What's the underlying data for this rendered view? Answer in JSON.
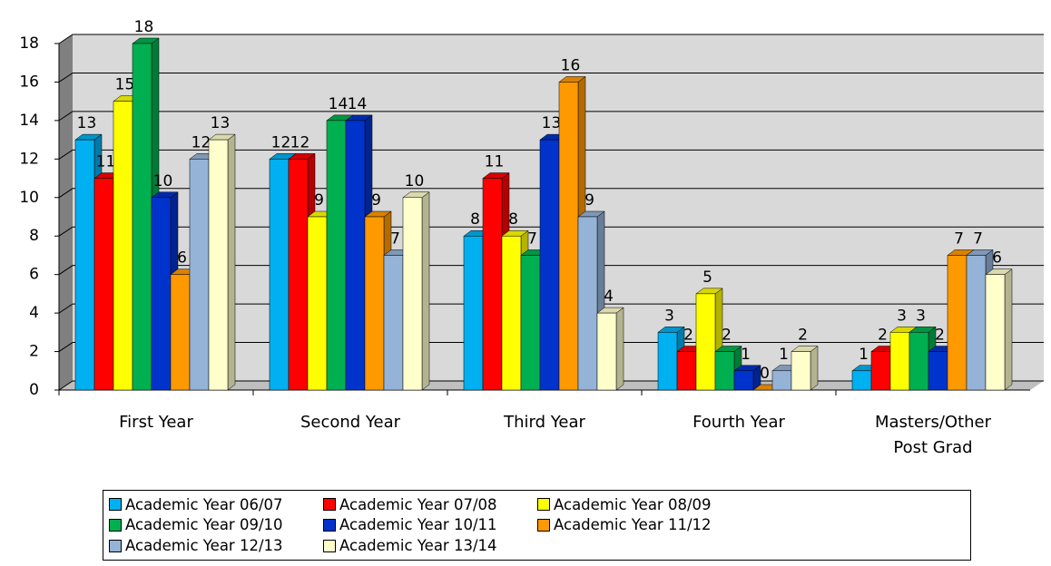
{
  "chart_data": {
    "type": "bar3d",
    "categories": [
      "First Year",
      "Second Year",
      "Third Year",
      "Fourth Year",
      "Masters/Other Post Grad"
    ],
    "series": [
      {
        "name": "Academic Year 06/07",
        "color": "#00b0f0",
        "values": [
          13,
          12,
          8,
          3,
          1
        ]
      },
      {
        "name": "Academic Year 07/08",
        "color": "#ff0000",
        "values": [
          11,
          12,
          11,
          2,
          2
        ]
      },
      {
        "name": "Academic Year 08/09",
        "color": "#ffff00",
        "values": [
          15,
          9,
          8,
          5,
          3
        ]
      },
      {
        "name": "Academic Year 09/10",
        "color": "#00b050",
        "values": [
          18,
          14,
          7,
          2,
          3
        ]
      },
      {
        "name": "Academic Year 10/11",
        "color": "#0033cc",
        "values": [
          10,
          14,
          13,
          1,
          2
        ]
      },
      {
        "name": "Academic Year 11/12",
        "color": "#ff9900",
        "values": [
          6,
          9,
          16,
          0,
          7
        ]
      },
      {
        "name": "Academic Year 12/13",
        "color": "#95b3d7",
        "values": [
          12,
          7,
          9,
          1,
          7
        ]
      },
      {
        "name": "Academic Year 13/14",
        "color": "#ffffcc",
        "values": [
          13,
          10,
          4,
          2,
          6
        ]
      }
    ],
    "ylim": [
      0,
      18
    ],
    "yticks": [
      0,
      2,
      4,
      6,
      8,
      10,
      12,
      14,
      16,
      18
    ],
    "grid": true,
    "legend": "bottom"
  }
}
